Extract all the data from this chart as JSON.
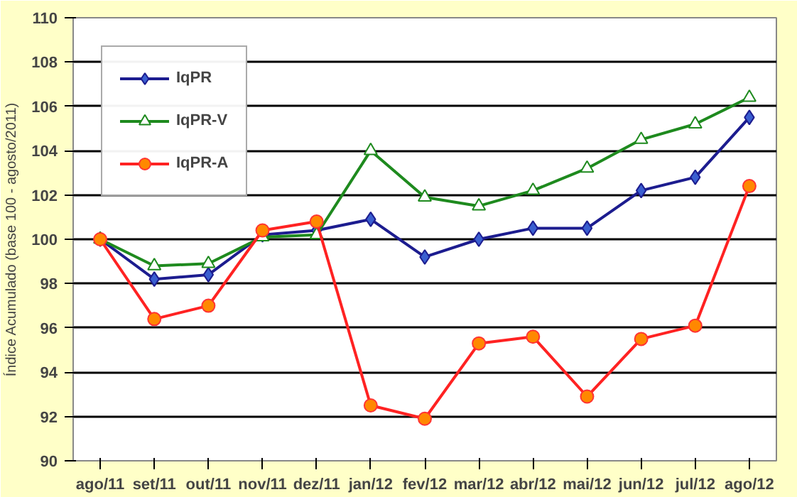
{
  "chart_data": {
    "type": "line",
    "ylabel": "Índice Acumulado (base 100 - agosto/2011)",
    "categories": [
      "ago/11",
      "set/11",
      "out/11",
      "nov/11",
      "dez/11",
      "jan/12",
      "fev/12",
      "mar/12",
      "abr/12",
      "mai/12",
      "jun/12",
      "jul/12",
      "ago/12"
    ],
    "ylim": [
      90,
      110
    ],
    "yticks": [
      90,
      92,
      94,
      96,
      98,
      100,
      102,
      104,
      106,
      108,
      110
    ],
    "grid": "y",
    "legend": "top left",
    "series": [
      {
        "name": "IqPR",
        "color": "#1c1c8f",
        "marker": "diamond",
        "values": [
          100,
          98.2,
          98.4,
          100.2,
          100.4,
          100.9,
          99.2,
          100.0,
          100.5,
          100.5,
          102.2,
          102.8,
          105.5
        ]
      },
      {
        "name": "IqPR-V",
        "color": "#1e8a1e",
        "marker": "triangle",
        "values": [
          100,
          98.8,
          98.9,
          100.1,
          100.2,
          104.0,
          101.9,
          101.5,
          102.2,
          103.2,
          104.5,
          105.2,
          106.4
        ]
      },
      {
        "name": "IqPR-A",
        "color": "#ff2222",
        "marker": "circle",
        "values": [
          100,
          96.4,
          97.0,
          100.4,
          100.8,
          92.5,
          91.9,
          95.3,
          95.6,
          92.9,
          95.5,
          96.1,
          102.4
        ]
      }
    ]
  }
}
